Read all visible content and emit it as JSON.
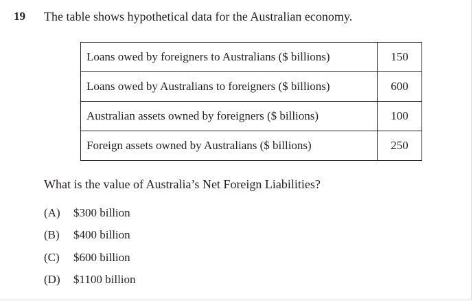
{
  "question": {
    "number": "19",
    "stem": "The table shows hypothetical data for the Australian economy.",
    "table": [
      {
        "label": "Loans owed by foreigners to Australians ($ billions)",
        "value": "150"
      },
      {
        "label": "Loans owed by Australians to foreigners ($ billions)",
        "value": "600"
      },
      {
        "label": "Australian assets owned by foreigners ($ billions)",
        "value": "100"
      },
      {
        "label": "Foreign assets owned by Australians ($ billions)",
        "value": "250"
      }
    ],
    "prompt": "What is the value of Australia’s Net Foreign Liabilities?",
    "options": [
      {
        "letter": "(A)",
        "text": "$300 billion"
      },
      {
        "letter": "(B)",
        "text": "$400 billion"
      },
      {
        "letter": "(C)",
        "text": "$600 billion"
      },
      {
        "letter": "(D)",
        "text": "$1100 billion"
      }
    ]
  }
}
